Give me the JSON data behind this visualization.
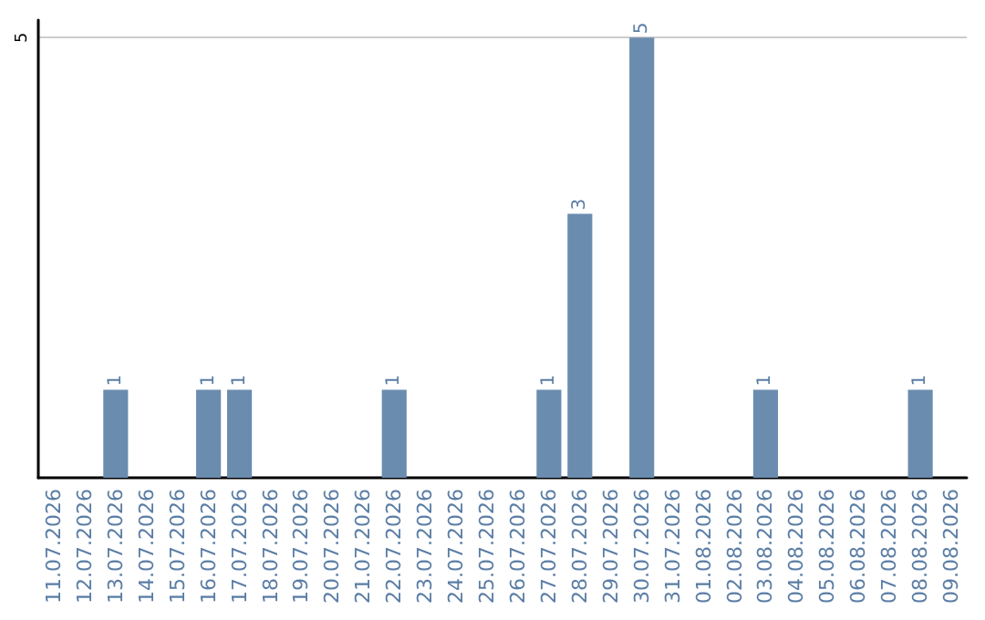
{
  "chart_data": {
    "type": "bar",
    "categories": [
      "11.07.2026",
      "12.07.2026",
      "13.07.2026",
      "14.07.2026",
      "15.07.2026",
      "16.07.2026",
      "17.07.2026",
      "18.07.2026",
      "19.07.2026",
      "20.07.2026",
      "21.07.2026",
      "22.07.2026",
      "23.07.2026",
      "24.07.2026",
      "25.07.2026",
      "26.07.2026",
      "27.07.2026",
      "28.07.2026",
      "29.07.2026",
      "30.07.2026",
      "31.07.2026",
      "01.08.2026",
      "02.08.2026",
      "03.08.2026",
      "04.08.2026",
      "05.08.2026",
      "06.08.2026",
      "07.08.2026",
      "08.08.2026",
      "09.08.2026"
    ],
    "values": [
      0,
      0,
      1,
      0,
      0,
      1,
      1,
      0,
      0,
      0,
      0,
      1,
      0,
      0,
      0,
      0,
      1,
      3,
      0,
      5,
      0,
      0,
      0,
      1,
      0,
      0,
      0,
      0,
      1,
      0
    ],
    "value_labels": [
      null,
      null,
      "1",
      null,
      null,
      "1",
      "1",
      null,
      null,
      null,
      null,
      "1",
      null,
      null,
      null,
      null,
      "1",
      "3",
      null,
      "5",
      null,
      null,
      null,
      "1",
      null,
      null,
      null,
      null,
      "1",
      null
    ],
    "color": "#6a8caf",
    "ylim": [
      0,
      5.2
    ],
    "yticks": [
      5
    ],
    "grid": "y"
  }
}
